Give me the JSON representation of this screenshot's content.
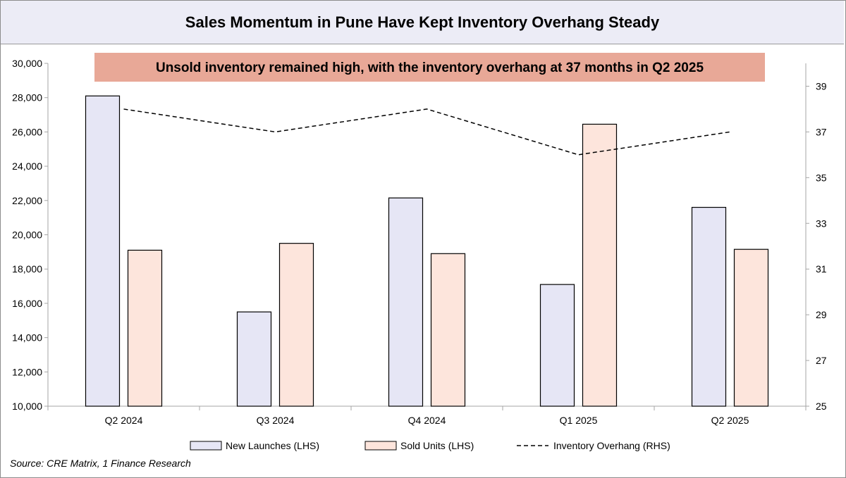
{
  "title": "Sales Momentum in Pune Have Kept Inventory Overhang Steady",
  "source": "Source: CRE Matrix, 1 Finance Research",
  "colors": {
    "new_launches_fill": "#e6e6f5",
    "sold_units_fill": "#fde5dc",
    "annotation_bg": "#e8a897",
    "title_bg": "#ececf6"
  },
  "chart_data": {
    "type": "bar",
    "categories": [
      "Q2 2024",
      "Q3 2024",
      "Q4 2024",
      "Q1 2025",
      "Q2 2025"
    ],
    "series": [
      {
        "name": "New Launches (LHS)",
        "type": "bar",
        "axis": "left",
        "values": [
          28100,
          15500,
          22150,
          17100,
          21600
        ]
      },
      {
        "name": "Sold Units (LHS)",
        "type": "bar",
        "axis": "left",
        "values": [
          19100,
          19500,
          18900,
          26450,
          19150
        ]
      },
      {
        "name": "Inventory Overhang (RHS)",
        "type": "line",
        "style": "dashed",
        "axis": "right",
        "values": [
          38,
          37,
          38,
          36,
          37
        ]
      }
    ],
    "ylim_left": [
      10000,
      30000
    ],
    "yticks_left": [
      "10,000",
      "12,000",
      "14,000",
      "16,000",
      "18,000",
      "20,000",
      "22,000",
      "24,000",
      "26,000",
      "28,000",
      "30,000"
    ],
    "ylim_right": [
      25,
      40
    ],
    "yticks_right": [
      "25",
      "27",
      "29",
      "31",
      "33",
      "35",
      "37",
      "39"
    ],
    "annotation": "Unsold inventory remained high, with the inventory overhang at 37 months in Q2 2025",
    "grid": false,
    "legend_position": "bottom"
  }
}
